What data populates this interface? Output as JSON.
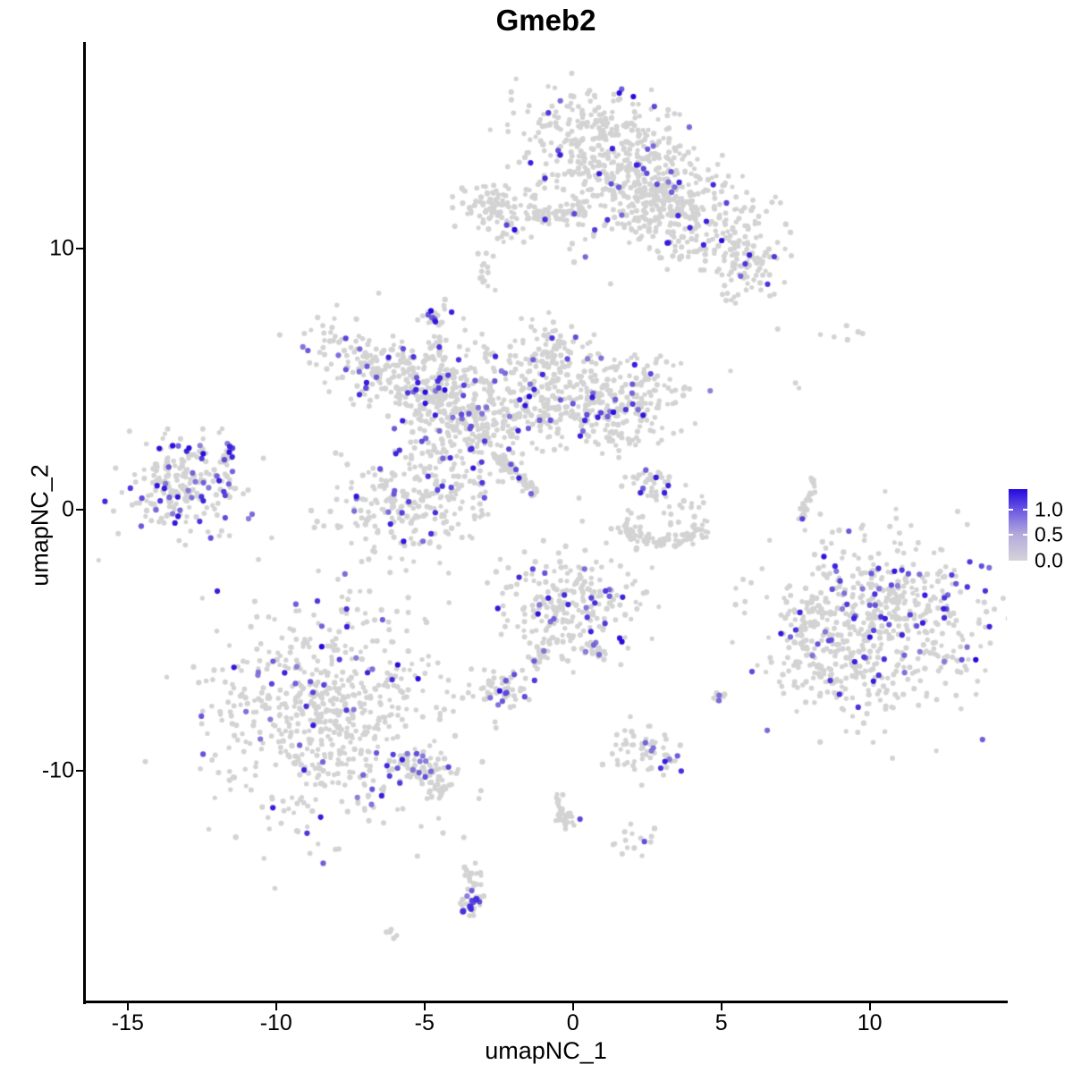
{
  "chart_data": {
    "type": "scatter",
    "title": "Gmeb2",
    "xlabel": "umapNC_1",
    "ylabel": "umapNC_2",
    "x_ticks": [
      -15,
      -10,
      -5,
      0,
      5,
      10
    ],
    "x_tick_labels": [
      "-15",
      "-10",
      "-5",
      "0",
      "5",
      "10"
    ],
    "y_ticks": [
      10,
      0,
      -10
    ],
    "y_tick_labels": [
      "10",
      "0",
      "-10"
    ],
    "x_range": [
      -16.44,
      14.62
    ],
    "y_range": [
      -18.87,
      17.88
    ],
    "grid": false,
    "legend_position": "right",
    "colorbar": {
      "labels": [
        "1.0",
        "0.5",
        "0.0"
      ],
      "values": [
        1.0,
        0.5,
        0.0
      ],
      "bar_max": 1.4,
      "low_color": "#d3d3d3",
      "high_color": "#2408df"
    },
    "point_color_zero": "#d3d3d3",
    "clusters": [
      {
        "name": "top-left-lobe",
        "shape": "gauss",
        "center": [
          0.57,
          14.21
        ],
        "sd": [
          1.15,
          1.05
        ],
        "n": 200,
        "expr": 0.04
      },
      {
        "name": "top-right-lobe",
        "shape": "gauss",
        "center": [
          1.93,
          12.84
        ],
        "sd": [
          1.25,
          1.25
        ],
        "n": 240,
        "expr": 0.045
      },
      {
        "name": "top-branch-right",
        "shape": "gauss",
        "center": [
          4.04,
          11.23
        ],
        "sd": [
          1.5,
          0.95
        ],
        "angle": -20,
        "n": 260,
        "expr": 0.05
      },
      {
        "name": "top-branch-tip",
        "shape": "gauss",
        "center": [
          5.78,
          9.62
        ],
        "sd": [
          0.7,
          0.7
        ],
        "n": 90,
        "expr": 0.09
      },
      {
        "name": "top-neck",
        "shape": "gauss",
        "center": [
          2.83,
          11.92
        ],
        "sd": [
          0.75,
          0.75
        ],
        "n": 80,
        "expr": 0.04
      },
      {
        "name": "top-small-left",
        "shape": "gauss",
        "center": [
          -2.29,
          11.54
        ],
        "sd": [
          0.8,
          0.58
        ],
        "n": 130,
        "expr": 0.035
      },
      {
        "name": "top-small-bridge",
        "shape": "strand",
        "from": [
          -1.23,
          11.23
        ],
        "to": [
          0.42,
          11.37
        ],
        "w": 0.2,
        "n": 40,
        "expr": 0.02
      },
      {
        "name": "top-tiny-blob",
        "shape": "gauss",
        "center": [
          -2.86,
          9.14
        ],
        "sd": [
          0.28,
          0.33
        ],
        "n": 12,
        "expr": 0
      },
      {
        "name": "stray-above-star",
        "shape": "points",
        "pts": [
          [
            -2.89,
            6.16
          ],
          [
            -2.77,
            5.95
          ],
          [
            -2.95,
            5.82
          ]
        ]
      },
      {
        "name": "star-knob",
        "shape": "gauss",
        "center": [
          -4.61,
          7.36
        ],
        "sd": [
          0.3,
          0.34
        ],
        "n": 26,
        "expr": 0.4
      },
      {
        "name": "star-knob-strand",
        "shape": "strand",
        "from": [
          -4.64,
          6.68
        ],
        "to": [
          -4.25,
          4.79
        ],
        "w": 0.16,
        "n": 26,
        "expr": 0.05
      },
      {
        "name": "star-arm-topleft",
        "shape": "gauss",
        "center": [
          -6.66,
          5.55
        ],
        "sd": [
          1.25,
          0.7
        ],
        "angle": -18,
        "n": 170,
        "expr": 0.08
      },
      {
        "name": "star-connector",
        "shape": "gauss",
        "center": [
          -5.3,
          4.55
        ],
        "sd": [
          0.85,
          0.6
        ],
        "angle": -30,
        "n": 90,
        "expr": 0.06
      },
      {
        "name": "star-core",
        "shape": "gauss",
        "center": [
          -3.55,
          3.49
        ],
        "sd": [
          1.05,
          1.2
        ],
        "n": 300,
        "expr": 0.1
      },
      {
        "name": "star-arm-top",
        "shape": "gauss",
        "center": [
          -0.93,
          5.75
        ],
        "sd": [
          0.9,
          0.82
        ],
        "n": 130,
        "expr": 0.05
      },
      {
        "name": "star-arm-mid",
        "shape": "gauss",
        "center": [
          -0.48,
          3.84
        ],
        "sd": [
          1.4,
          0.7
        ],
        "n": 160,
        "expr": 0.08
      },
      {
        "name": "star-arm-right-blob",
        "shape": "gauss",
        "center": [
          1.78,
          4.04
        ],
        "sd": [
          1.0,
          0.95
        ],
        "n": 200,
        "expr": 0.1
      },
      {
        "name": "star-arm-lowerleft",
        "shape": "gauss",
        "center": [
          -5.51,
          0.34
        ],
        "sd": [
          1.55,
          1.05
        ],
        "angle": 25,
        "n": 260,
        "expr": 0.09
      },
      {
        "name": "star-tail-streak",
        "shape": "strand",
        "from": [
          -2.65,
          2.19
        ],
        "to": [
          -1.23,
          0.58
        ],
        "w": 0.1,
        "n": 70,
        "expr": 0.06
      },
      {
        "name": "far-left-cluster",
        "shape": "gauss",
        "center": [
          -13.13,
          0.92
        ],
        "sd": [
          1.05,
          0.88
        ],
        "n": 230,
        "expr": 0.14
      },
      {
        "name": "far-left-tail",
        "shape": "strand",
        "from": [
          -11.93,
          1.88
        ],
        "to": [
          -11.42,
          2.4
        ],
        "w": 0.14,
        "n": 18,
        "expr": 0.2
      },
      {
        "name": "mid-arc-top",
        "shape": "gauss",
        "center": [
          2.71,
          0.92
        ],
        "sd": [
          0.5,
          0.36
        ],
        "n": 38,
        "expr": 0.18
      },
      {
        "name": "mid-arc-sparse",
        "shape": "gauss",
        "center": [
          2.98,
          0.1
        ],
        "sd": [
          1.05,
          0.32
        ],
        "n": 22,
        "expr": 0
      },
      {
        "name": "mid-arc-crescent",
        "shape": "arc",
        "center": [
          3.05,
          -0.38
        ],
        "rx": 1.35,
        "ry": 0.85,
        "a0": 195,
        "a1": 345,
        "w": 0.16,
        "n": 90,
        "expr": 0
      },
      {
        "name": "right-strand",
        "shape": "strand",
        "from": [
          8.13,
          1.23
        ],
        "to": [
          7.71,
          -0.41
        ],
        "w": 0.07,
        "n": 38,
        "expr": 0
      },
      {
        "name": "right-strand-purple",
        "shape": "points",
        "pts": [
          [
            7.73,
            -0.35
          ]
        ],
        "val": 0.72
      },
      {
        "name": "right-main-cluster",
        "shape": "gauss",
        "center": [
          10.27,
          -4.45
        ],
        "sd": [
          1.8,
          1.65
        ],
        "n": 580,
        "expr": 0.12
      },
      {
        "name": "right-satellite",
        "shape": "gauss",
        "center": [
          7.89,
          -4.35
        ],
        "sd": [
          0.42,
          0.5
        ],
        "n": 34,
        "expr": 0.12
      },
      {
        "name": "right-lower-tail",
        "shape": "gauss",
        "center": [
          8.55,
          -6.34
        ],
        "sd": [
          0.8,
          0.75
        ],
        "n": 55,
        "expr": 0.06
      },
      {
        "name": "center-bottom-main",
        "shape": "gauss",
        "center": [
          -0.21,
          -3.63
        ],
        "sd": [
          1.1,
          1.0
        ],
        "n": 230,
        "expr": 0.1
      },
      {
        "name": "center-bottom-strand",
        "shape": "strand",
        "from": [
          -0.69,
          -4.86
        ],
        "to": [
          -1.33,
          -6.03
        ],
        "w": 0.11,
        "n": 28,
        "expr": 0.04
      },
      {
        "name": "center-bottom-blob",
        "shape": "gauss",
        "center": [
          -2.53,
          -6.88
        ],
        "sd": [
          0.58,
          0.36
        ],
        "n": 60,
        "expr": 0.15
      },
      {
        "name": "center-bottom-diag",
        "shape": "strand",
        "from": [
          0.42,
          -5.0
        ],
        "to": [
          1.11,
          -5.68
        ],
        "w": 0.11,
        "n": 24,
        "expr": 0.12
      },
      {
        "name": "small-pair-right",
        "shape": "gauss",
        "center": [
          4.85,
          -7.2
        ],
        "sd": [
          0.17,
          0.14
        ],
        "n": 9,
        "expr": 0.3
      },
      {
        "name": "bottom-left-main",
        "shape": "gauss",
        "center": [
          -8.22,
          -7.77
        ],
        "sd": [
          1.85,
          2.05
        ],
        "n": 640,
        "expr": 0.09
      },
      {
        "name": "bottom-left-tail",
        "shape": "strand",
        "from": [
          -5.9,
          -9.42
        ],
        "to": [
          -4.1,
          -10.62
        ],
        "w": 0.33,
        "n": 85,
        "expr": 0.06
      },
      {
        "name": "bottom-center-cluster",
        "shape": "gauss",
        "center": [
          2.35,
          -9.28
        ],
        "sd": [
          0.72,
          0.5
        ],
        "n": 62,
        "expr": 0.1
      },
      {
        "name": "bottom-strand",
        "shape": "strand",
        "from": [
          -0.63,
          -10.55
        ],
        "to": [
          -0.09,
          -12.26
        ],
        "w": 0.14,
        "n": 34,
        "expr": 0
      },
      {
        "name": "bottom-strand-purple",
        "shape": "points",
        "pts": [
          [
            0.24,
            -11.85
          ]
        ],
        "val": 0.7
      },
      {
        "name": "bottom-small-blob",
        "shape": "gauss",
        "center": [
          2.08,
          -12.67
        ],
        "sd": [
          0.36,
          0.28
        ],
        "n": 15,
        "expr": 0
      },
      {
        "name": "bottom-small-blob-purple",
        "shape": "points",
        "pts": [
          [
            2.41,
            -12.71
          ]
        ],
        "val": 0.65
      },
      {
        "name": "bottom-curve-upper",
        "shape": "strand",
        "from": [
          -3.67,
          -13.66
        ],
        "to": [
          -3.01,
          -14.69
        ],
        "w": 0.18,
        "n": 20,
        "expr": 0.1
      },
      {
        "name": "bottom-curve-lower",
        "shape": "strand",
        "from": [
          -3.01,
          -14.69
        ],
        "to": [
          -3.73,
          -15.44
        ],
        "w": 0.2,
        "n": 24,
        "expr": 0.15
      },
      {
        "name": "bottom-curve-purples",
        "shape": "points",
        "pts": [
          [
            -3.46,
            -15.2
          ],
          [
            -3.25,
            -14.92
          ],
          [
            -3.7,
            -15.38
          ]
        ],
        "val": 0.8,
        "r": 3.6
      },
      {
        "name": "bottom-tiny-dots",
        "shape": "gauss",
        "center": [
          -6.17,
          -16.2
        ],
        "sd": [
          0.17,
          0.12
        ],
        "n": 5,
        "expr": 0
      },
      {
        "name": "sparse-top-right",
        "shape": "points",
        "pts": [
          [
            6.9,
            6.92
          ],
          [
            8.34,
            6.71
          ],
          [
            9.22,
            7.05
          ],
          [
            9.61,
            6.81
          ],
          [
            9.25,
            6.51
          ],
          [
            9.76,
            6.75
          ],
          [
            8.8,
            6.62
          ]
        ]
      },
      {
        "name": "sparse-right-pair",
        "shape": "points",
        "pts": [
          [
            7.5,
            4.86
          ],
          [
            7.62,
            4.66
          ]
        ]
      }
    ]
  }
}
